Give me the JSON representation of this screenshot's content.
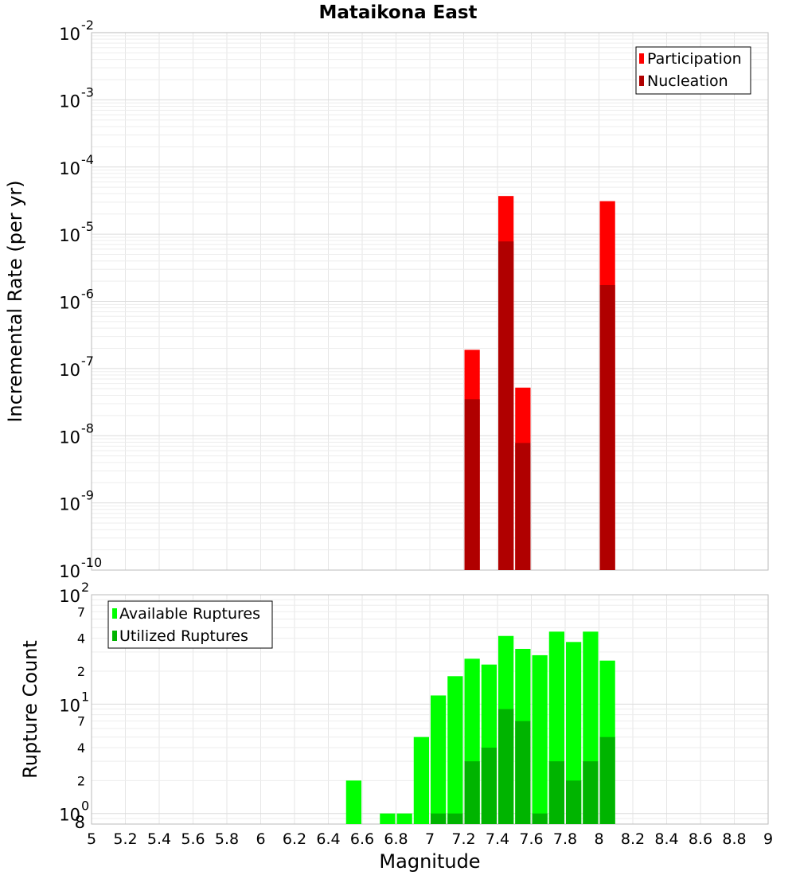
{
  "chart_data": [
    {
      "type": "bar",
      "title": "Mataikona East",
      "xlabel": "Magnitude",
      "ylabel": "Incremental Rate (per yr)",
      "yscale": "log",
      "xlim": [
        5,
        9
      ],
      "ylim": [
        1e-10,
        0.01
      ],
      "grid": true,
      "legend_position": "top-right",
      "bin_width": 0.1,
      "y_tick_labels": [
        {
          "base": "10",
          "exp": "-10"
        },
        {
          "base": "10",
          "exp": "-9"
        },
        {
          "base": "10",
          "exp": "-8"
        },
        {
          "base": "10",
          "exp": "-7"
        },
        {
          "base": "10",
          "exp": "-6"
        },
        {
          "base": "10",
          "exp": "-5"
        },
        {
          "base": "10",
          "exp": "-4"
        },
        {
          "base": "10",
          "exp": "-3"
        },
        {
          "base": "10",
          "exp": "-2"
        }
      ],
      "series": [
        {
          "name": "Participation",
          "color": "#ff0000",
          "x": [
            7.25,
            7.45,
            7.55,
            8.05
          ],
          "values": [
            1.9e-07,
            3.7e-05,
            5.2e-08,
            3.1e-05
          ]
        },
        {
          "name": "Nucleation",
          "color": "#b00000",
          "x": [
            7.25,
            7.45,
            7.55,
            8.05
          ],
          "values": [
            3.5e-08,
            7.8e-06,
            7.8e-09,
            1.75e-06
          ]
        }
      ]
    },
    {
      "type": "bar",
      "xlabel": "Magnitude",
      "ylabel": "Rupture Count",
      "yscale": "log",
      "xlim": [
        5,
        9
      ],
      "ylim": [
        0.8,
        100
      ],
      "grid": true,
      "legend_position": "top-left",
      "bin_width": 0.1,
      "x_ticks": [
        "5",
        "5.2",
        "5.4",
        "5.6",
        "5.8",
        "6",
        "6.2",
        "6.4",
        "6.6",
        "6.8",
        "7",
        "7.2",
        "7.4",
        "7.6",
        "7.8",
        "8",
        "8.2",
        "8.4",
        "8.6",
        "8.8",
        "9"
      ],
      "y_tick_labels": [
        {
          "base": "10",
          "exp": "0"
        },
        {
          "base": "10",
          "exp": "1"
        },
        {
          "base": "10",
          "exp": "2"
        }
      ],
      "y_minor_tick_labels": [
        {
          "label": "8",
          "value": 0.8
        },
        {
          "label": "2",
          "value": 2
        },
        {
          "label": "4",
          "value": 4
        },
        {
          "label": "7",
          "value": 7
        },
        {
          "label": "2",
          "value": 20
        },
        {
          "label": "4",
          "value": 40
        },
        {
          "label": "7",
          "value": 70
        }
      ],
      "series": [
        {
          "name": "Available Ruptures",
          "color": "#00ff00",
          "x": [
            6.55,
            6.75,
            6.85,
            6.95,
            7.05,
            7.15,
            7.25,
            7.35,
            7.45,
            7.55,
            7.65,
            7.75,
            7.85,
            7.95,
            8.05
          ],
          "values": [
            2,
            1,
            1,
            5,
            12,
            18,
            26,
            23,
            42,
            32,
            28,
            46,
            37,
            46,
            25
          ]
        },
        {
          "name": "Utilized Ruptures",
          "color": "#00b400",
          "x": [
            7.05,
            7.15,
            7.25,
            7.35,
            7.45,
            7.55,
            7.65,
            7.75,
            7.85,
            7.95,
            8.05
          ],
          "values": [
            1,
            1,
            3,
            4,
            9,
            7,
            1,
            3,
            2,
            3,
            5
          ]
        }
      ]
    }
  ]
}
